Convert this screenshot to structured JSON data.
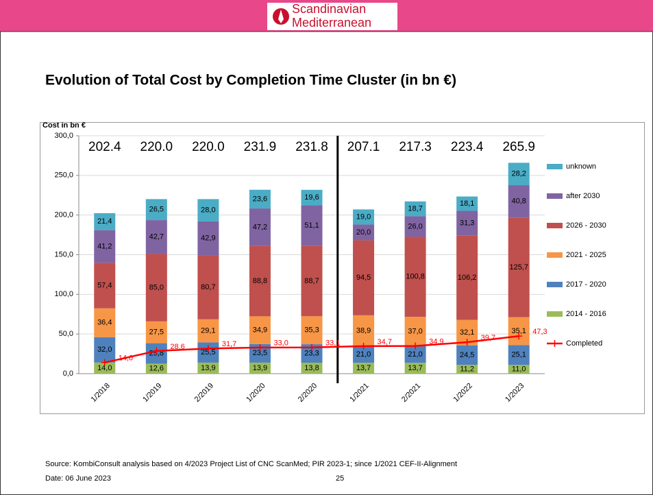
{
  "header": {
    "logo_line1": "Scandinavian",
    "logo_line2": "Mediterranean"
  },
  "chart_data": {
    "type": "bar",
    "stacked": true,
    "title": "Evolution of Total Cost by Completion Time Cluster (in bn €)",
    "y_label": "Cost in bn €",
    "categories": [
      "1/2018",
      "1/2019",
      "2/2019",
      "1/2020",
      "2/2020",
      "1/2021",
      "2/2021",
      "1/2022",
      "1/2023"
    ],
    "ylim": [
      0,
      300
    ],
    "yticks": [
      {
        "value": 0,
        "label": "0,0"
      },
      {
        "value": 50,
        "label": "50,0"
      },
      {
        "value": 100,
        "label": "100,0"
      },
      {
        "value": 150,
        "label": "150,0"
      },
      {
        "value": 200,
        "label": "200,0"
      },
      {
        "value": 250,
        "label": "250,0"
      },
      {
        "value": 300,
        "label": "300,0"
      }
    ],
    "series": [
      {
        "name": "2014 - 2016",
        "color": "#9bbb59",
        "values": [
          14.0,
          12.6,
          13.9,
          13.9,
          13.8,
          13.7,
          13.7,
          11.2,
          11.0
        ],
        "value_labels": [
          "14,0",
          "12,6",
          "13,9",
          "13,9",
          "13,8",
          "13,7",
          "13,7",
          "11,2",
          "11,0"
        ]
      },
      {
        "name": "2017 - 2020",
        "color": "#4f81bd",
        "values": [
          32.0,
          25.8,
          25.5,
          23.5,
          23.3,
          21.0,
          21.0,
          24.5,
          25.1
        ],
        "value_labels": [
          "32,0",
          "25,8",
          "25,5",
          "23,5",
          "23,3",
          "21,0",
          "21,0",
          "24,5",
          "25,1"
        ]
      },
      {
        "name": "2021 - 2025",
        "color": "#f79646",
        "values": [
          36.4,
          27.5,
          29.1,
          34.9,
          35.3,
          38.9,
          37.0,
          32.1,
          35.1
        ],
        "value_labels": [
          "36,4",
          "27,5",
          "29,1",
          "34,9",
          "35,3",
          "38,9",
          "37,0",
          "32,1",
          "35,1"
        ]
      },
      {
        "name": "2026 - 2030",
        "color": "#c0504d",
        "values": [
          57.4,
          85.0,
          80.7,
          88.8,
          88.7,
          94.5,
          100.8,
          106.2,
          125.7
        ],
        "value_labels": [
          "57,4",
          "85,0",
          "80,7",
          "88,8",
          "88,7",
          "94,5",
          "100,8",
          "106,2",
          "125,7"
        ]
      },
      {
        "name": "after 2030",
        "color": "#8064a2",
        "values": [
          41.2,
          42.7,
          42.9,
          47.2,
          51.1,
          20.0,
          26.0,
          31.3,
          40.8
        ],
        "value_labels": [
          "41,2",
          "42,7",
          "42,9",
          "47,2",
          "51,1",
          "20,0",
          "26,0",
          "31,3",
          "40,8"
        ]
      },
      {
        "name": "unknown",
        "color": "#4bacc6",
        "values": [
          21.4,
          26.5,
          28.0,
          23.6,
          19.6,
          19.0,
          18.7,
          18.1,
          28.2
        ],
        "value_labels": [
          "21,4",
          "26,5",
          "28,0",
          "23,6",
          "19,6",
          "19,0",
          "18,7",
          "18,1",
          "28,2"
        ]
      }
    ],
    "line": {
      "name": "Completed",
      "color": "#ff0000",
      "values": [
        14.0,
        28.6,
        31.7,
        33.0,
        33.1,
        34.7,
        34.9,
        39.7,
        47.3
      ],
      "value_labels": [
        "14,0",
        "28,6",
        "31,7",
        "33,0",
        "33,1",
        "34,7",
        "34,9",
        "39,7",
        "47,3"
      ]
    },
    "totals": {
      "values": [
        202.4,
        220.0,
        220.0,
        231.9,
        231.8,
        207.1,
        217.3,
        223.4,
        265.9
      ],
      "value_labels": [
        "202.4",
        "220.0",
        "220.0",
        "231.9",
        "231.8",
        "207.1",
        "217.3",
        "223.4",
        "265.9"
      ]
    }
  },
  "footer": {
    "source": "Source: KombiConsult analysis based on 4/2023 Project List of CNC ScanMed; PIR 2023-1; since 1/2021 CEF-II-Alignment",
    "date": "Date: 06 June 2023",
    "page": "25"
  }
}
